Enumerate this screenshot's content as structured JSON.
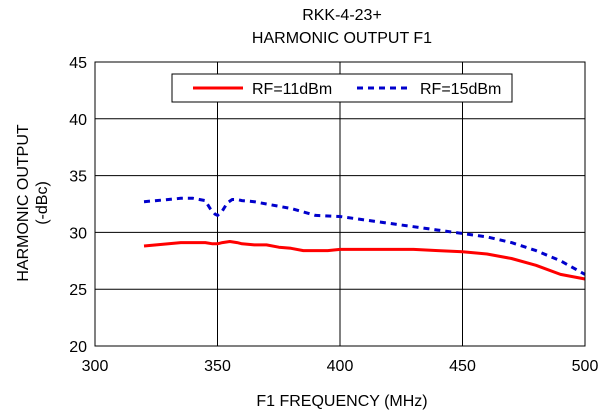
{
  "chart_data": {
    "type": "line",
    "title": "RKK-4-23+",
    "subtitle": "HARMONIC OUTPUT F1",
    "xlabel": "F1 FREQUENCY (MHz)",
    "ylabel_line1": "HARMONIC OUTPUT",
    "ylabel_line2": "(-dBc)",
    "xlim": [
      300,
      500
    ],
    "ylim": [
      20,
      45
    ],
    "x_ticks": [
      300,
      350,
      400,
      450,
      500
    ],
    "y_ticks": [
      20,
      25,
      30,
      35,
      40,
      45
    ],
    "x_tick_labels": [
      "300",
      "350",
      "400",
      "450",
      "500"
    ],
    "y_tick_labels": [
      "20",
      "25",
      "30",
      "35",
      "40",
      "45"
    ],
    "grid": true,
    "legend_position": "top-center",
    "series": [
      {
        "name": "RF=11dBm",
        "color": "#ff0000",
        "style": "solid",
        "x": [
          320,
          325,
          330,
          335,
          340,
          345,
          348,
          350,
          352,
          355,
          358,
          360,
          365,
          370,
          375,
          380,
          385,
          390,
          395,
          400,
          410,
          420,
          430,
          440,
          450,
          460,
          470,
          480,
          490,
          500
        ],
        "y": [
          28.8,
          28.9,
          29.0,
          29.1,
          29.1,
          29.1,
          29.0,
          29.0,
          29.1,
          29.2,
          29.1,
          29.0,
          28.9,
          28.9,
          28.7,
          28.6,
          28.4,
          28.4,
          28.4,
          28.5,
          28.5,
          28.5,
          28.5,
          28.4,
          28.3,
          28.1,
          27.7,
          27.1,
          26.3,
          25.9
        ]
      },
      {
        "name": "RF=15dBm",
        "color": "#0000cc",
        "style": "dashed",
        "x": [
          320,
          325,
          330,
          335,
          340,
          345,
          347,
          349,
          350,
          352,
          354,
          356,
          358,
          360,
          365,
          370,
          380,
          390,
          400,
          410,
          420,
          430,
          440,
          450,
          460,
          470,
          480,
          490,
          500
        ],
        "y": [
          32.7,
          32.8,
          32.9,
          33.0,
          33.0,
          32.8,
          32.1,
          31.6,
          31.5,
          31.9,
          32.6,
          32.9,
          32.9,
          32.8,
          32.7,
          32.5,
          32.1,
          31.5,
          31.4,
          31.1,
          30.8,
          30.5,
          30.2,
          29.9,
          29.6,
          29.1,
          28.4,
          27.5,
          26.3
        ]
      }
    ]
  }
}
